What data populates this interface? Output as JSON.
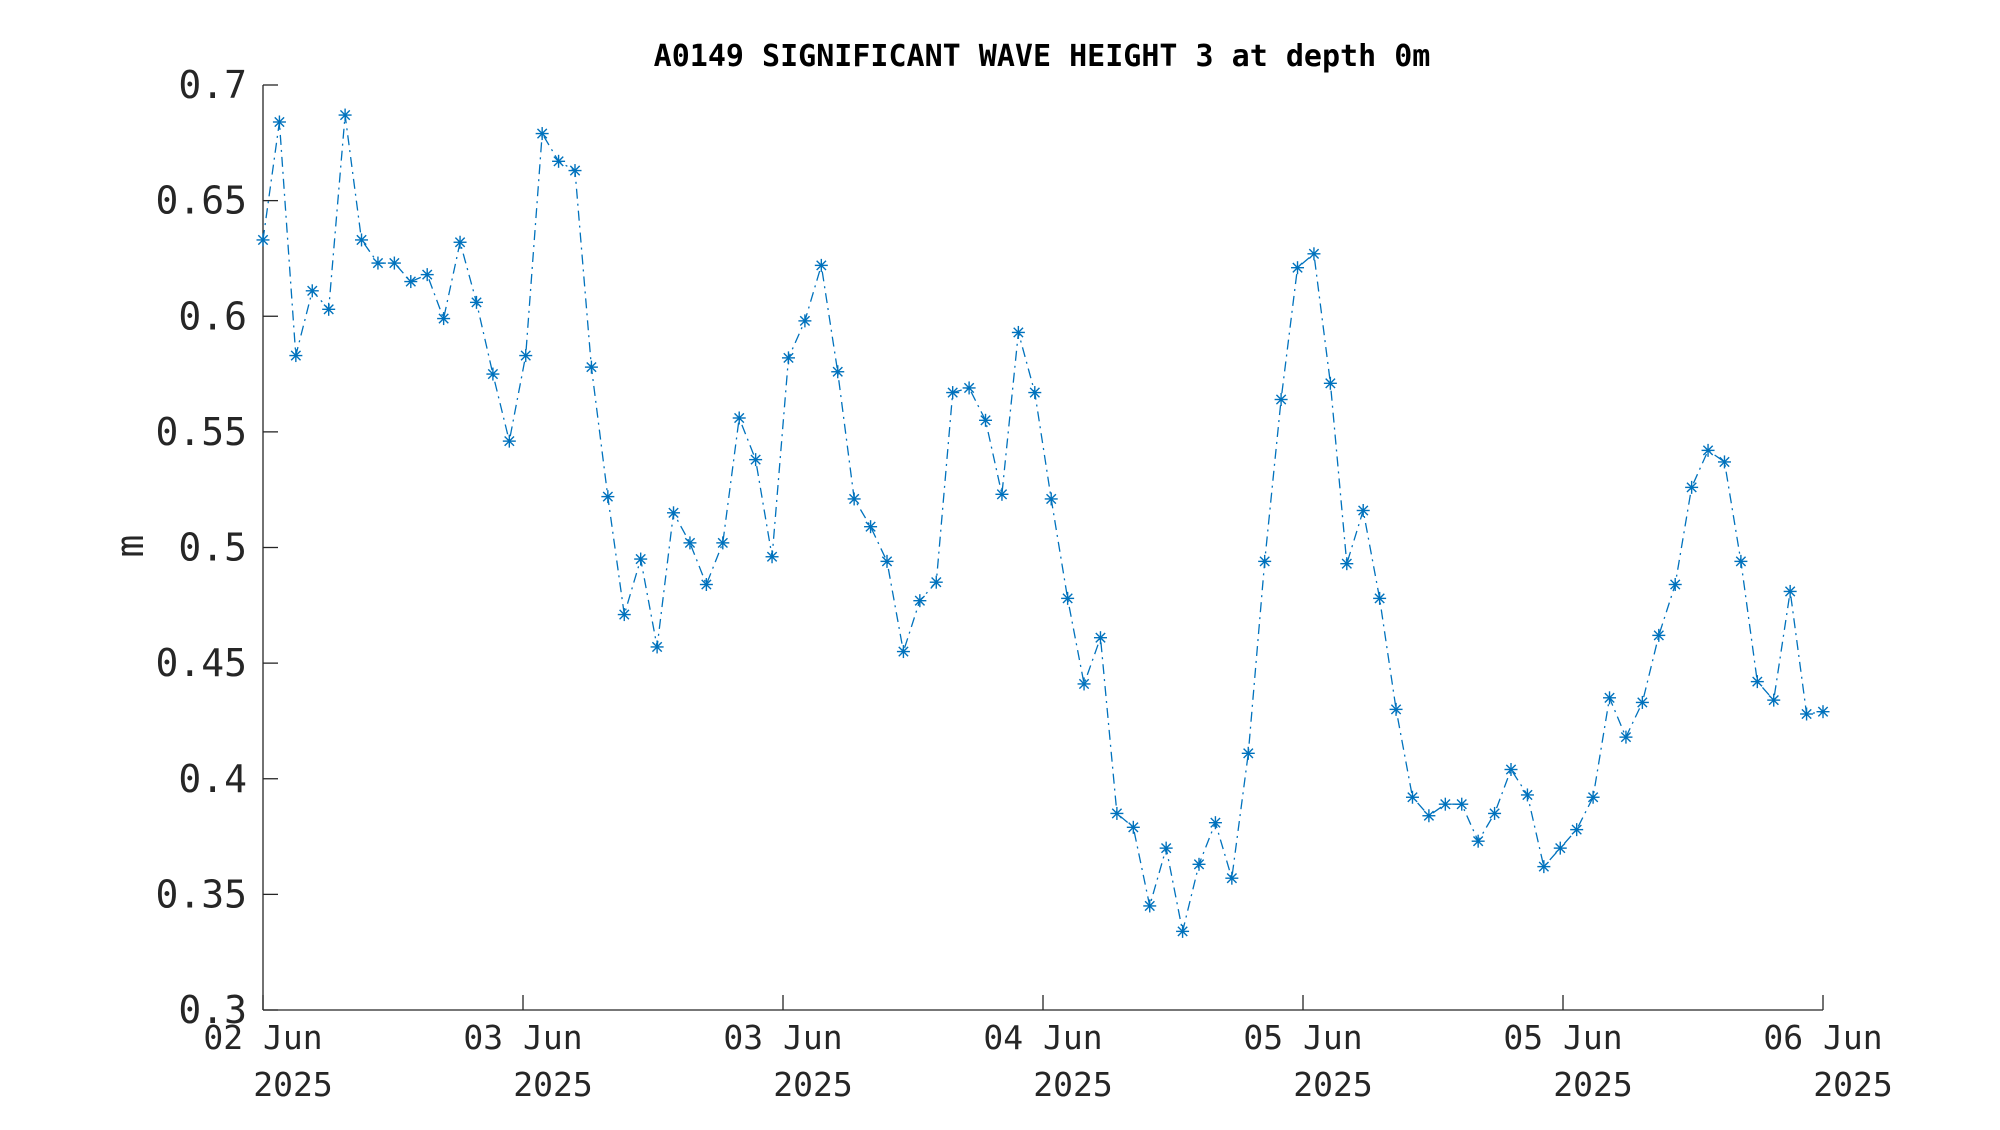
{
  "chart_data": {
    "type": "line",
    "title": "A0149 SIGNIFICANT WAVE HEIGHT 3 at depth 0m",
    "xlabel": "",
    "ylabel": "m",
    "ylim": [
      0.3,
      0.7
    ],
    "y_ticks": [
      "0.3",
      "0.35",
      "0.4",
      "0.45",
      "0.5",
      "0.55",
      "0.6",
      "0.65",
      "0.7"
    ],
    "x_ticks": [
      {
        "line1": "02 Jun",
        "line2": "2025"
      },
      {
        "line1": "03 Jun",
        "line2": "2025"
      },
      {
        "line1": "03 Jun",
        "line2": "2025"
      },
      {
        "line1": "04 Jun",
        "line2": "2025"
      },
      {
        "line1": "05 Jun",
        "line2": "2025"
      },
      {
        "line1": "05 Jun",
        "line2": "2025"
      },
      {
        "line1": "06 Jun",
        "line2": "2025"
      }
    ],
    "grid": false,
    "line_style": "dash-dot",
    "marker": "asterisk",
    "series": [
      {
        "color": "#0072BD",
        "values": [
          0.633,
          0.684,
          0.583,
          0.611,
          0.603,
          0.687,
          0.633,
          0.623,
          0.623,
          0.615,
          0.618,
          0.599,
          0.632,
          0.606,
          0.575,
          0.546,
          0.583,
          0.679,
          0.667,
          0.663,
          0.578,
          0.522,
          0.471,
          0.495,
          0.457,
          0.515,
          0.502,
          0.484,
          0.502,
          0.556,
          0.538,
          0.496,
          0.582,
          0.598,
          0.622,
          0.576,
          0.521,
          0.509,
          0.494,
          0.455,
          0.477,
          0.485,
          0.567,
          0.569,
          0.555,
          0.523,
          0.593,
          0.567,
          0.521,
          0.478,
          0.441,
          0.461,
          0.385,
          0.379,
          0.345,
          0.37,
          0.334,
          0.363,
          0.381,
          0.357,
          0.411,
          0.494,
          0.564,
          0.621,
          0.627,
          0.571,
          0.493,
          0.516,
          0.478,
          0.43,
          0.392,
          0.384,
          0.389,
          0.389,
          0.373,
          0.385,
          0.404,
          0.393,
          0.362,
          0.37,
          0.378,
          0.392,
          0.435,
          0.418,
          0.433,
          0.462,
          0.484,
          0.526,
          0.542,
          0.537,
          0.494,
          0.442,
          0.434,
          0.481,
          0.428,
          0.429
        ]
      }
    ]
  }
}
